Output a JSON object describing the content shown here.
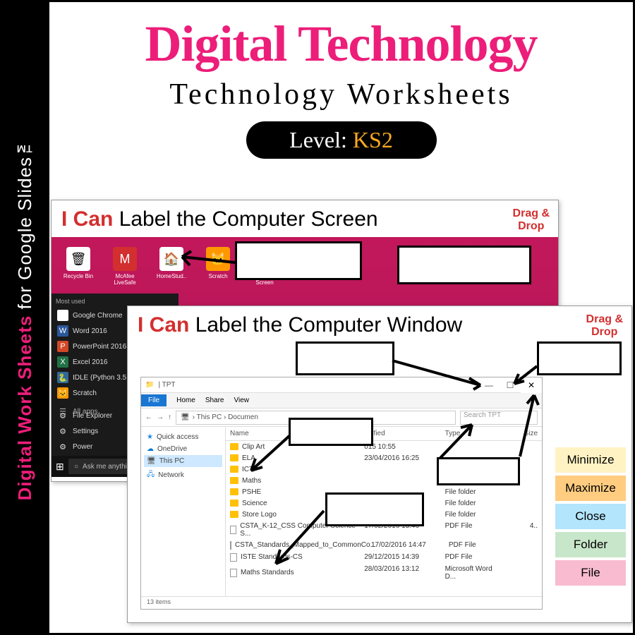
{
  "sidebar": {
    "pink": "Digital Work Sheets",
    "white": " for Google Slides™"
  },
  "header": {
    "title1": "Digital Technology",
    "title2": "Technology Worksheets",
    "level_label": "Level: ",
    "level_value": "KS2"
  },
  "slideA": {
    "prefix": "I Can ",
    "title": "Label the Computer Screen",
    "drag1": "Drag &",
    "drag2": "Drop",
    "desktop_icons": [
      {
        "label": "Recycle Bin",
        "glyph": "🗑",
        "bg": "#fff"
      },
      {
        "label": "McAfee LiveSafe",
        "glyph": "M",
        "bg": "#d32f2f",
        "color": "#fff"
      },
      {
        "label": "HomeStud..",
        "glyph": "🏠",
        "bg": "#fff"
      },
      {
        "label": "Scratch",
        "glyph": "🐱",
        "bg": "#ff9800"
      },
      {
        "label": "Computer Screen",
        "glyph": "🖥",
        "bg": "#fff"
      }
    ],
    "start": {
      "head": "Most used",
      "items": [
        {
          "label": "Google Chrome",
          "bg": "#fff",
          "glyph": "◉"
        },
        {
          "label": "Word 2016",
          "bg": "#2b579a",
          "glyph": "W"
        },
        {
          "label": "PowerPoint 2016",
          "bg": "#d24726",
          "glyph": "P"
        },
        {
          "label": "Excel 2016",
          "bg": "#217346",
          "glyph": "X"
        },
        {
          "label": "IDLE (Python 3.5 32-...)",
          "bg": "#306998",
          "glyph": "🐍"
        },
        {
          "label": "Scratch",
          "bg": "#ff9800",
          "glyph": "🐱"
        }
      ],
      "all": "All apps",
      "bottom": [
        "File Explorer",
        "Settings",
        "Power"
      ],
      "cortana": "Ask me anythin"
    }
  },
  "slideB": {
    "prefix": "I Can ",
    "title": "Label the Computer Window",
    "drag1": "Drag &",
    "drag2": "Drop",
    "explorer": {
      "tab": "TPT",
      "ribbon": {
        "file": "File",
        "items": [
          "Home",
          "Share",
          "View"
        ]
      },
      "crumb": "› This PC › Documen",
      "search": "Search TPT",
      "nav": [
        {
          "label": "Quick access",
          "glyph": "★",
          "color": "#1e88e5"
        },
        {
          "label": "OneDrive",
          "glyph": "☁",
          "color": "#0078d4"
        },
        {
          "label": "This PC",
          "glyph": "🖥",
          "sel": true
        },
        {
          "label": "Network",
          "glyph": "🖧",
          "color": "#1e88e5"
        }
      ],
      "cols": [
        "Name",
        "odified",
        "Type",
        "Size"
      ],
      "rows": [
        {
          "name": "Clip Art",
          "date": "015 10:55",
          "type": "",
          "folder": true
        },
        {
          "name": "ELA",
          "date": "23/04/2016 16:25",
          "type": "",
          "folder": true
        },
        {
          "name": "ICT",
          "date": "",
          "type": "",
          "folder": true
        },
        {
          "name": "Maths",
          "date": "",
          "type": "File folder",
          "folder": true
        },
        {
          "name": "PSHE",
          "date": "",
          "type": "File folder",
          "folder": true
        },
        {
          "name": "Science",
          "date": "",
          "type": "File folder",
          "folder": true
        },
        {
          "name": "Store Logo",
          "date": "06/04/2016 14:03",
          "type": "File folder",
          "folder": true
        },
        {
          "name": "CSTA_K-12_CSS Computer Science S...",
          "date": "17/02/2016 13:46",
          "type": "PDF File",
          "size": "4..",
          "folder": false
        },
        {
          "name": "CSTA_Standards_Mapped_to_CommonCo...",
          "date": "17/02/2016 14:47",
          "type": "PDF File",
          "folder": false
        },
        {
          "name": "ISTE Standards-CS",
          "date": "29/12/2015 14:39",
          "type": "PDF File",
          "folder": false
        },
        {
          "name": "Maths Standards",
          "date": "28/03/2016 13:12",
          "type": "Microsoft Word D...",
          "folder": false
        }
      ],
      "status": "13 items"
    },
    "answers": [
      {
        "label": "Minimize",
        "bg": "#fff3c4"
      },
      {
        "label": "Maximize",
        "bg": "#ffcc80"
      },
      {
        "label": "Close",
        "bg": "#b3e5fc"
      },
      {
        "label": "Folder",
        "bg": "#c8e6c9"
      },
      {
        "label": "File",
        "bg": "#f8bbd0"
      }
    ]
  },
  "colors": {
    "pink": "#ec1e79",
    "orange": "#f9a825"
  }
}
